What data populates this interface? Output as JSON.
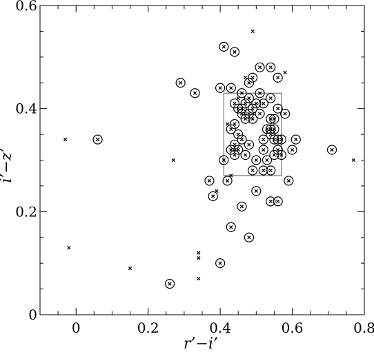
{
  "chart_data": {
    "type": "scatter",
    "title": "",
    "xlabel": "r’−i’",
    "ylabel": "i’−z’",
    "xlim": [
      -0.1,
      0.8
    ],
    "ylim": [
      0,
      0.6
    ],
    "xticks": [
      0,
      0.2,
      0.4,
      0.6,
      0.8
    ],
    "xtick_labels": [
      "0",
      "0.2",
      "0.4",
      "0.6",
      "0.8"
    ],
    "yticks": [
      0,
      0.2,
      0.4,
      0.6
    ],
    "ytick_labels": [
      "0",
      "0.2",
      "0.4",
      "0.6"
    ],
    "grid": false,
    "box": {
      "x": [
        0.41,
        0.57
      ],
      "y": [
        0.27,
        0.43
      ]
    },
    "series": [
      {
        "marker": "circled-cross",
        "points": [
          [
            0.06,
            0.34
          ],
          [
            0.26,
            0.06
          ],
          [
            0.29,
            0.45
          ],
          [
            0.33,
            0.43
          ],
          [
            0.37,
            0.26
          ],
          [
            0.38,
            0.23
          ],
          [
            0.4,
            0.1
          ],
          [
            0.4,
            0.44
          ],
          [
            0.41,
            0.52
          ],
          [
            0.41,
            0.3
          ],
          [
            0.42,
            0.26
          ],
          [
            0.43,
            0.17
          ],
          [
            0.44,
            0.51
          ],
          [
            0.43,
            0.44
          ],
          [
            0.43,
            0.36
          ],
          [
            0.43,
            0.32
          ],
          [
            0.44,
            0.41
          ],
          [
            0.44,
            0.37
          ],
          [
            0.44,
            0.33
          ],
          [
            0.44,
            0.31
          ],
          [
            0.45,
            0.4
          ],
          [
            0.45,
            0.35
          ],
          [
            0.45,
            0.32
          ],
          [
            0.46,
            0.43
          ],
          [
            0.46,
            0.4
          ],
          [
            0.46,
            0.39
          ],
          [
            0.46,
            0.34
          ],
          [
            0.46,
            0.21
          ],
          [
            0.47,
            0.41
          ],
          [
            0.47,
            0.38
          ],
          [
            0.47,
            0.31
          ],
          [
            0.48,
            0.45
          ],
          [
            0.48,
            0.42
          ],
          [
            0.48,
            0.39
          ],
          [
            0.48,
            0.33
          ],
          [
            0.48,
            0.15
          ],
          [
            0.49,
            0.46
          ],
          [
            0.49,
            0.4
          ],
          [
            0.49,
            0.38
          ],
          [
            0.49,
            0.28
          ],
          [
            0.5,
            0.41
          ],
          [
            0.5,
            0.3
          ],
          [
            0.5,
            0.24
          ],
          [
            0.51,
            0.48
          ],
          [
            0.51,
            0.43
          ],
          [
            0.51,
            0.39
          ],
          [
            0.52,
            0.41
          ],
          [
            0.52,
            0.34
          ],
          [
            0.52,
            0.32
          ],
          [
            0.52,
            0.28
          ],
          [
            0.53,
            0.36
          ],
          [
            0.53,
            0.3
          ],
          [
            0.54,
            0.48
          ],
          [
            0.54,
            0.42
          ],
          [
            0.54,
            0.38
          ],
          [
            0.54,
            0.36
          ],
          [
            0.54,
            0.35
          ],
          [
            0.54,
            0.28
          ],
          [
            0.54,
            0.22
          ],
          [
            0.55,
            0.38
          ],
          [
            0.55,
            0.36
          ],
          [
            0.55,
            0.34
          ],
          [
            0.55,
            0.31
          ],
          [
            0.56,
            0.46
          ],
          [
            0.56,
            0.4
          ],
          [
            0.56,
            0.34
          ],
          [
            0.56,
            0.32
          ],
          [
            0.56,
            0.22
          ],
          [
            0.57,
            0.34
          ],
          [
            0.57,
            0.31
          ],
          [
            0.58,
            0.39
          ],
          [
            0.59,
            0.26
          ],
          [
            0.6,
            0.32
          ],
          [
            0.61,
            0.34
          ],
          [
            0.71,
            0.32
          ]
        ]
      },
      {
        "marker": "cross",
        "points": [
          [
            -0.03,
            0.34
          ],
          [
            -0.02,
            0.13
          ],
          [
            0.15,
            0.09
          ],
          [
            0.27,
            0.3
          ],
          [
            0.34,
            0.12
          ],
          [
            0.34,
            0.11
          ],
          [
            0.34,
            0.07
          ],
          [
            0.39,
            0.24
          ],
          [
            0.42,
            0.37
          ],
          [
            0.43,
            0.27
          ],
          [
            0.45,
            0.42
          ],
          [
            0.47,
            0.46
          ],
          [
            0.49,
            0.55
          ],
          [
            0.58,
            0.47
          ],
          [
            0.77,
            0.3
          ]
        ]
      }
    ]
  }
}
